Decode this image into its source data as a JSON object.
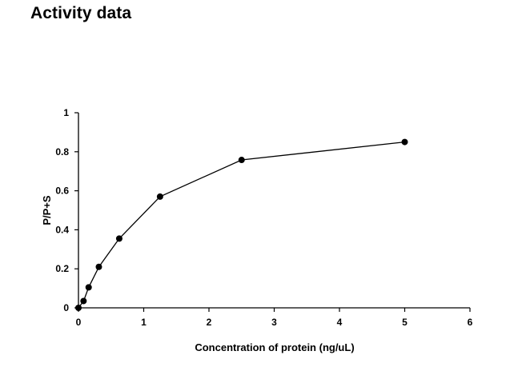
{
  "page": {
    "title": "Activity data"
  },
  "chart_data": {
    "type": "line",
    "title": "",
    "xlabel": "Concentration of protein (ng/uL)",
    "ylabel": "P/P+S",
    "xlim": [
      0,
      6
    ],
    "ylim": [
      0,
      1
    ],
    "xticks": [
      0,
      1,
      2,
      3,
      4,
      5,
      6
    ],
    "yticks": [
      0,
      0.2,
      0.4,
      0.6,
      0.8,
      1
    ],
    "ytick_labels": [
      "0",
      "0.2",
      "0.4",
      "0.6",
      "0.8",
      "1"
    ],
    "grid": false,
    "legend": "none",
    "series": [
      {
        "x": [
          0,
          0.078,
          0.156,
          0.3125,
          0.625,
          1.25,
          2.5,
          5
        ],
        "y": [
          0,
          0.035,
          0.105,
          0.21,
          0.355,
          0.57,
          0.758,
          0.85
        ],
        "color": "#000000",
        "marker": "filled-circle"
      }
    ]
  }
}
